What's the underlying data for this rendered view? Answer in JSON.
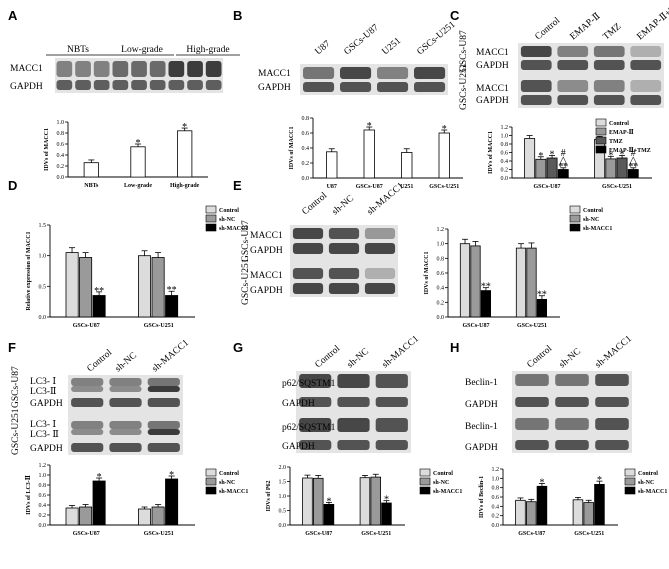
{
  "figure": {
    "panels": [
      {
        "id": "A",
        "letter": "A",
        "blot": {
          "lanes": [],
          "groups": [
            "NBTs",
            "Low-grade",
            "High-grade"
          ],
          "rowLabels": [
            "MACC1",
            "GAPDH"
          ],
          "sideLabels": []
        }
      },
      {
        "id": "B",
        "letter": "B",
        "blot": {
          "lanes": [
            "U87",
            "GSCs-U87",
            "U251",
            "GSCs-U251"
          ],
          "groups": [],
          "rowLabels": [
            "MACC1",
            "GAPDH"
          ],
          "sideLabels": []
        }
      },
      {
        "id": "C",
        "letter": "C",
        "blot": {
          "lanes": [
            "Control",
            "EMAP-Ⅱ",
            "TMZ",
            "EMAP-Ⅱ+TMZ"
          ],
          "groups": [],
          "rowLabels": [
            "MACC1",
            "GAPDH",
            "MACC1",
            "GAPDH"
          ],
          "sideLabels": [
            "GSCs-U87",
            "GSCs-U251"
          ]
        }
      },
      {
        "id": "D",
        "letter": "D",
        "blot": null
      },
      {
        "id": "E",
        "letter": "E",
        "blot": {
          "lanes": [
            "Control",
            "sh-NC",
            "sh-MACC1"
          ],
          "groups": [],
          "rowLabels": [
            "MACC1",
            "GAPDH",
            "MACC1",
            "GAPDH"
          ],
          "sideLabels": [
            "GSCs-U87",
            "GSCs-U251"
          ]
        }
      },
      {
        "id": "F",
        "letter": "F",
        "blot": {
          "lanes": [
            "Control",
            "sh-NC",
            "sh-MACC1"
          ],
          "groups": [],
          "rowLabels": [
            "LC3- Ⅰ",
            "LC3-Ⅱ",
            "GAPDH",
            "LC3- Ⅰ",
            "LC3- Ⅱ",
            "GAPDH"
          ],
          "sideLabels": [
            "GSCs-U87",
            "GSCs-U251"
          ]
        }
      },
      {
        "id": "G",
        "letter": "G",
        "blot": {
          "lanes": [
            "Control",
            "sh-NC",
            "sh-MACC1"
          ],
          "groups": [],
          "rowLabels": [
            "p62/SQSTM1",
            "GAPDH",
            "p62/SQSTM1",
            "GAPDH"
          ],
          "sideLabels": []
        }
      },
      {
        "id": "H",
        "letter": "H",
        "blot": {
          "lanes": [
            "Control",
            "sh-NC",
            "sh-MACC1"
          ],
          "groups": [],
          "rowLabels": [
            "Beclin-1",
            "GAPDH",
            "Beclin-1",
            "GAPDH"
          ],
          "sideLabels": []
        }
      }
    ]
  },
  "chart_data": [
    {
      "panel": "A",
      "type": "bar",
      "title": "",
      "xlabel": "",
      "ylabel": "IDVs of MACC1",
      "categories": [
        "NBTs",
        "Low-grade",
        "High-grade"
      ],
      "ylim": [
        0,
        1.0
      ],
      "yticks": [
        "0.0",
        "0.2",
        "0.4",
        "0.6",
        "0.8",
        "1.0"
      ],
      "series": [
        {
          "values": [
            0.26,
            0.55,
            0.84
          ],
          "errors": [
            0.05,
            0.05,
            0.05
          ],
          "colors": [
            "#ffffff",
            "#ffffff",
            "#ffffff"
          ],
          "annotations": [
            "",
            "*",
            "*"
          ]
        }
      ]
    },
    {
      "panel": "B",
      "type": "bar",
      "title": "",
      "xlabel": "",
      "ylabel": "IDVs of MACC1",
      "categories": [
        "U87",
        "GSCs-U87",
        "U251",
        "GSCs-U251"
      ],
      "ylim": [
        0,
        0.8
      ],
      "yticks": [
        "0.0",
        "0.2",
        "0.4",
        "0.6",
        "0.8"
      ],
      "series": [
        {
          "values": [
            0.35,
            0.64,
            0.34,
            0.6
          ],
          "errors": [
            0.04,
            0.04,
            0.05,
            0.04
          ],
          "colors": [
            "#ffffff",
            "#ffffff",
            "#ffffff",
            "#ffffff"
          ],
          "annotations": [
            "",
            "*",
            "",
            "*"
          ]
        }
      ]
    },
    {
      "panel": "C",
      "type": "bar",
      "title": "",
      "xlabel": "",
      "ylabel": "IDVs of MACC1",
      "categories": [
        "GSCs-U87",
        "GSCs-U251"
      ],
      "ylim": [
        0,
        1.2
      ],
      "yticks": [
        "0.0",
        "0.2",
        "0.4",
        "0.6",
        "0.8",
        "1.0",
        "1.2"
      ],
      "legend": {
        "position": "top-right",
        "entries": [
          "Control",
          "EMAP-Ⅱ",
          "TMZ",
          "EMAP-Ⅱ+TMZ"
        ],
        "colors": [
          "#dcdcdc",
          "#9a9a9a",
          "#5a5a5a",
          "#000000"
        ]
      },
      "series": [
        {
          "name": "Control",
          "values": [
            0.93,
            0.91
          ],
          "errors": [
            0.07,
            0.07
          ],
          "annotations": [
            "",
            ""
          ]
        },
        {
          "name": "EMAP-Ⅱ",
          "values": [
            0.44,
            0.45
          ],
          "errors": [
            0.06,
            0.06
          ],
          "annotations": [
            "*",
            "*"
          ]
        },
        {
          "name": "TMZ",
          "values": [
            0.47,
            0.47
          ],
          "errors": [
            0.06,
            0.06
          ],
          "annotations": [
            "*",
            "*"
          ]
        },
        {
          "name": "EMAP-Ⅱ+TMZ",
          "values": [
            0.2,
            0.2
          ],
          "errors": [
            0.04,
            0.04
          ],
          "annotations": [
            "#\n△\n**",
            "#\n△\n**"
          ]
        }
      ]
    },
    {
      "panel": "D",
      "type": "bar",
      "title": "",
      "xlabel": "",
      "ylabel": "Relative expression of MACC1",
      "categories": [
        "GSCs-U87",
        "GSCs-U251"
      ],
      "ylim": [
        0,
        1.5
      ],
      "yticks": [
        "0.0",
        "0.5",
        "1.0",
        "1.5"
      ],
      "legend": {
        "position": "top-right",
        "entries": [
          "Control",
          "sh-NC",
          "sh-MACC1"
        ],
        "colors": [
          "#dcdcdc",
          "#9a9a9a",
          "#000000"
        ]
      },
      "series": [
        {
          "name": "Control",
          "values": [
            1.05,
            1.0
          ],
          "errors": [
            0.08,
            0.08
          ],
          "annotations": [
            "",
            ""
          ]
        },
        {
          "name": "sh-NC",
          "values": [
            0.97,
            0.97
          ],
          "errors": [
            0.08,
            0.08
          ],
          "annotations": [
            "",
            ""
          ]
        },
        {
          "name": "sh-MACC1",
          "values": [
            0.35,
            0.35
          ],
          "errors": [
            0.06,
            0.07
          ],
          "annotations": [
            "**",
            "**"
          ]
        }
      ]
    },
    {
      "panel": "E",
      "type": "bar",
      "title": "",
      "xlabel": "",
      "ylabel": "IDVs of MACC1",
      "categories": [
        "GSCs-U87",
        "GSCs-U251"
      ],
      "ylim": [
        0,
        1.2
      ],
      "yticks": [
        "0.0",
        "0.2",
        "0.4",
        "0.6",
        "0.8",
        "1.0",
        "1.2"
      ],
      "legend": {
        "position": "top-right",
        "entries": [
          "Control",
          "sh-NC",
          "sh-MACC1"
        ],
        "colors": [
          "#dcdcdc",
          "#9a9a9a",
          "#000000"
        ]
      },
      "series": [
        {
          "name": "Control",
          "values": [
            1.0,
            0.94
          ],
          "errors": [
            0.06,
            0.06
          ],
          "annotations": [
            "",
            ""
          ]
        },
        {
          "name": "sh-NC",
          "values": [
            0.97,
            0.94
          ],
          "errors": [
            0.06,
            0.07
          ],
          "annotations": [
            "",
            ""
          ]
        },
        {
          "name": "sh-MACC1",
          "values": [
            0.36,
            0.24
          ],
          "errors": [
            0.04,
            0.05
          ],
          "annotations": [
            "**",
            "**"
          ]
        }
      ]
    },
    {
      "panel": "F",
      "type": "bar",
      "title": "",
      "xlabel": "",
      "ylabel": "IDVs of LC3-Ⅱ",
      "categories": [
        "GSCs-U87",
        "GSCs-U251"
      ],
      "ylim": [
        0,
        1.2
      ],
      "yticks": [
        "0.0",
        "0.2",
        "0.4",
        "0.6",
        "0.8",
        "1.0",
        "1.2"
      ],
      "legend": {
        "position": "top-right",
        "entries": [
          "Control",
          "sh-NC",
          "sh-MACC1"
        ],
        "colors": [
          "#dcdcdc",
          "#9a9a9a",
          "#000000"
        ]
      },
      "series": [
        {
          "name": "Control",
          "values": [
            0.34,
            0.32
          ],
          "errors": [
            0.05,
            0.04
          ],
          "annotations": [
            "",
            ""
          ]
        },
        {
          "name": "sh-NC",
          "values": [
            0.36,
            0.36
          ],
          "errors": [
            0.05,
            0.05
          ],
          "annotations": [
            "",
            ""
          ]
        },
        {
          "name": "sh-MACC1",
          "values": [
            0.88,
            0.92
          ],
          "errors": [
            0.06,
            0.06
          ],
          "annotations": [
            "*",
            "*"
          ]
        }
      ]
    },
    {
      "panel": "G",
      "type": "bar",
      "title": "",
      "xlabel": "",
      "ylabel": "IDVs of P62",
      "categories": [
        "GSCs-U87",
        "GSCs-U251"
      ],
      "ylim": [
        0,
        2.0
      ],
      "yticks": [
        "0.0",
        "0.5",
        "1.0",
        "1.5",
        "2.0"
      ],
      "legend": {
        "position": "top-right",
        "entries": [
          "Control",
          "sh-NC",
          "sh-MACC1"
        ],
        "colors": [
          "#dcdcdc",
          "#9a9a9a",
          "#000000"
        ]
      },
      "series": [
        {
          "name": "Control",
          "values": [
            1.62,
            1.63
          ],
          "errors": [
            0.1,
            0.08
          ],
          "annotations": [
            "",
            ""
          ]
        },
        {
          "name": "sh-NC",
          "values": [
            1.61,
            1.65
          ],
          "errors": [
            0.1,
            0.1
          ],
          "annotations": [
            "",
            ""
          ]
        },
        {
          "name": "sh-MACC1",
          "values": [
            0.71,
            0.76
          ],
          "errors": [
            0.07,
            0.08
          ],
          "annotations": [
            "*",
            "*"
          ]
        }
      ]
    },
    {
      "panel": "H",
      "type": "bar",
      "title": "",
      "xlabel": "",
      "ylabel": "IDVs of Beclin-1",
      "categories": [
        "GSCs-U87",
        "GSCs-U251"
      ],
      "ylim": [
        0,
        1.2
      ],
      "yticks": [
        "0.0",
        "0.2",
        "0.4",
        "0.6",
        "0.8",
        "1.0",
        "1.2"
      ],
      "legend": {
        "position": "top-right",
        "entries": [
          "Control",
          "sh-NC",
          "sh-MACC1"
        ],
        "colors": [
          "#dcdcdc",
          "#9a9a9a",
          "#000000"
        ]
      },
      "series": [
        {
          "name": "Control",
          "values": [
            0.53,
            0.54
          ],
          "errors": [
            0.05,
            0.05
          ],
          "annotations": [
            "",
            ""
          ]
        },
        {
          "name": "sh-NC",
          "values": [
            0.5,
            0.48
          ],
          "errors": [
            0.05,
            0.05
          ],
          "annotations": [
            "",
            ""
          ]
        },
        {
          "name": "sh-MACC1",
          "values": [
            0.83,
            0.87
          ],
          "errors": [
            0.06,
            0.07
          ],
          "annotations": [
            "*",
            "*"
          ]
        }
      ]
    }
  ]
}
